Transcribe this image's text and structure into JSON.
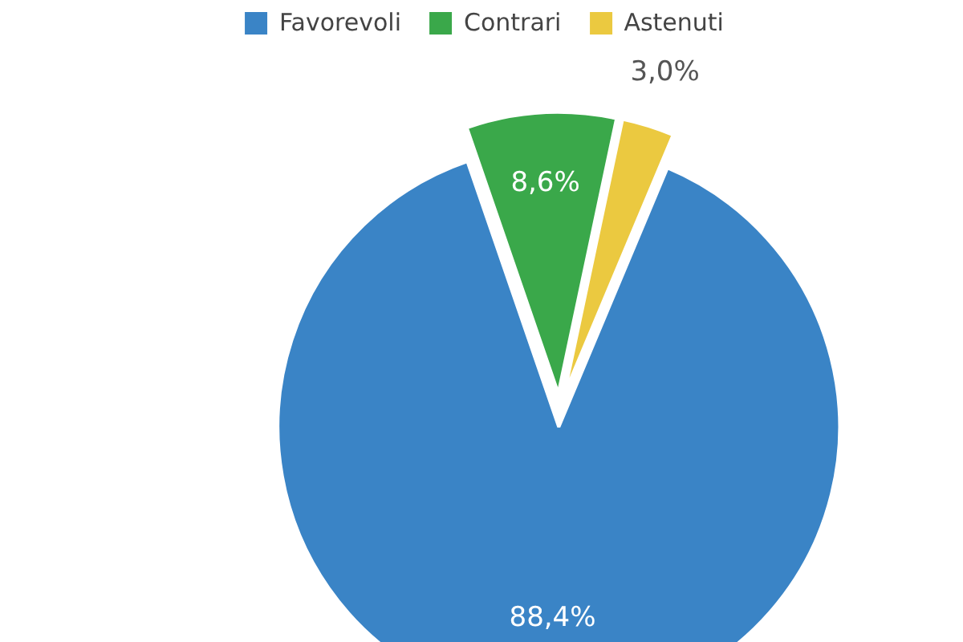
{
  "chart_data": {
    "type": "pie",
    "categories": [
      "Favorevoli",
      "Contrari",
      "Astenuti"
    ],
    "values": [
      88.4,
      8.6,
      3.0
    ],
    "value_labels": [
      "88,4%",
      "8,6%",
      "3,0%"
    ],
    "colors": [
      "#3a84c6",
      "#3aa84a",
      "#ebc940"
    ],
    "legend": "top"
  }
}
